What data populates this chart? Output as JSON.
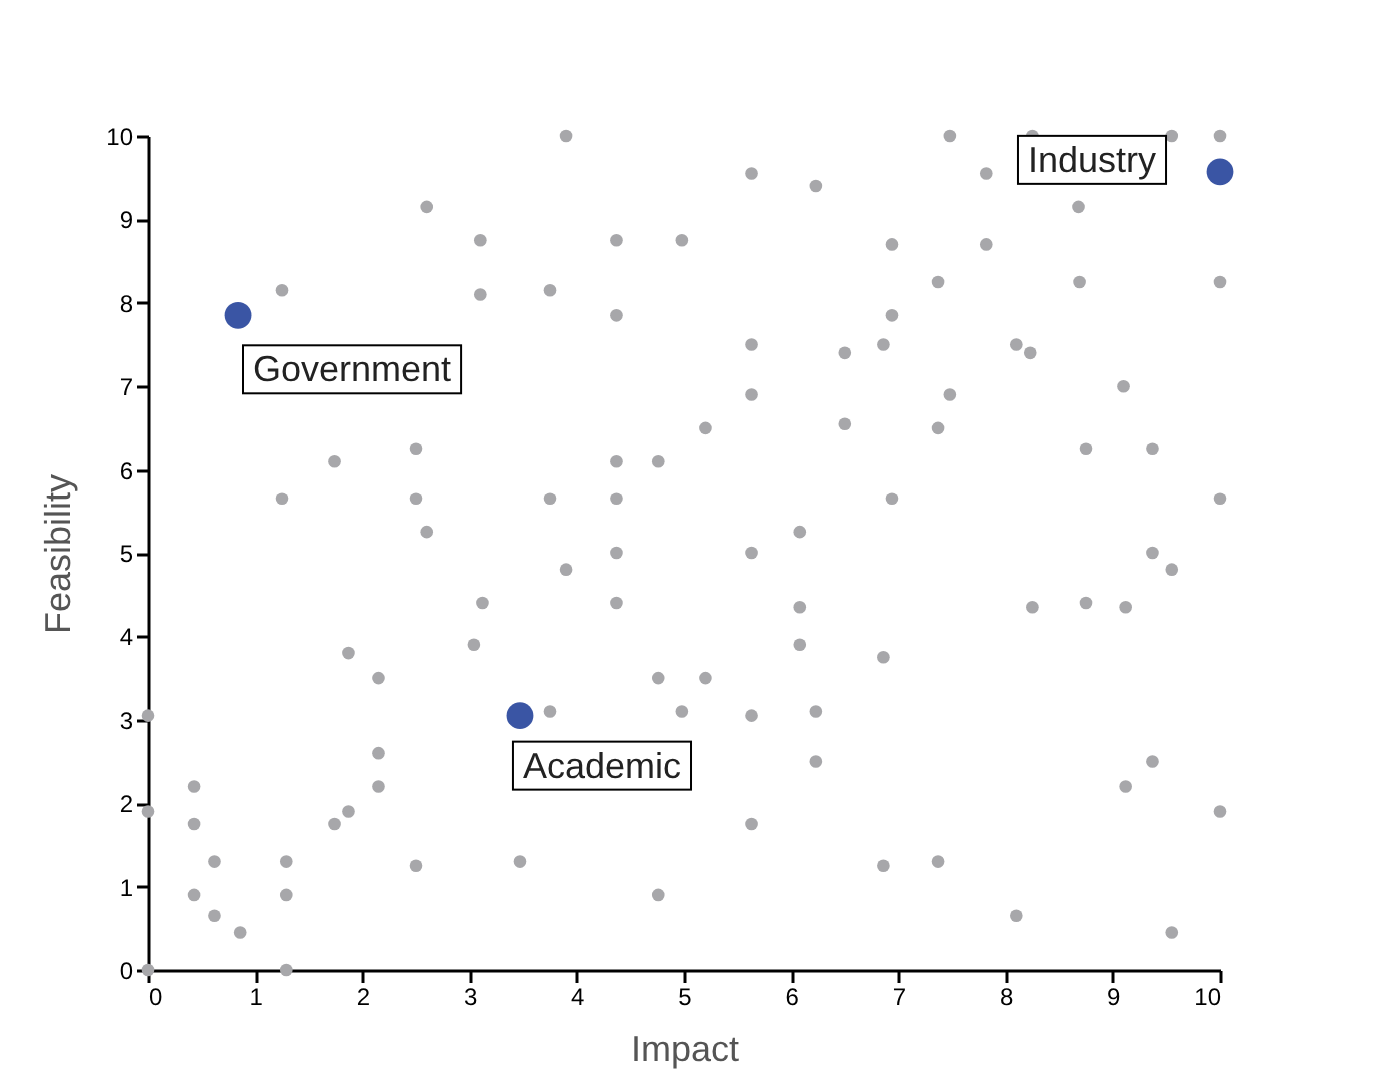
{
  "chart_data": {
    "type": "scatter",
    "xlabel": "Impact",
    "ylabel": "Feasibility",
    "xlim": [
      0,
      10
    ],
    "ylim": [
      0,
      10
    ],
    "xticks": [
      0,
      1,
      2,
      3,
      4,
      5,
      6,
      7,
      8,
      9,
      10
    ],
    "yticks": [
      0,
      1,
      2,
      3,
      4,
      5,
      6,
      7,
      8,
      9,
      10
    ],
    "grid": false,
    "legend": false,
    "marker": "circle",
    "series": [
      {
        "color": "#a7a7aa",
        "x": [
          0,
          0,
          0,
          0.43,
          0.43,
          0.43,
          0.62,
          0.62,
          0.86,
          1.25,
          1.25,
          1.29,
          1.29,
          1.29,
          1.74,
          1.74,
          1.87,
          1.87,
          2.15,
          2.15,
          2.15,
          2.5,
          2.5,
          2.5,
          2.6,
          2.6,
          3.1,
          3.1,
          3.12,
          3.04,
          3.75,
          3.75,
          3.75,
          3.47,
          3.9,
          3.9,
          4.37,
          4.37,
          4.37,
          4.37,
          4.37,
          4.37,
          4.76,
          4.76,
          4.76,
          4.98,
          4.98,
          5.2,
          5.2,
          5.63,
          5.63,
          5.63,
          5.63,
          5.63,
          5.63,
          6.23,
          6.08,
          6.08,
          6.08,
          6.23,
          6.23,
          6.5,
          6.5,
          6.86,
          6.94,
          6.94,
          6.94,
          6.86,
          6.86,
          7.48,
          7.37,
          7.37,
          7.48,
          7.37,
          7.82,
          7.82,
          8.1,
          8.1,
          8.23,
          8.25,
          8.25,
          8.68,
          8.69,
          8.75,
          8.75,
          9.1,
          9.12,
          9.12,
          9.37,
          9.37,
          9.37,
          9.55,
          9.55,
          9.55,
          10,
          10,
          10,
          10
        ],
        "values": [
          0,
          3.05,
          1.9,
          2.2,
          1.75,
          0.9,
          1.3,
          0.65,
          0.45,
          8.15,
          5.65,
          1.3,
          0.9,
          0,
          6.1,
          1.75,
          3.8,
          1.9,
          3.5,
          2.6,
          2.2,
          6.25,
          5.65,
          1.25,
          5.25,
          9.15,
          8.1,
          8.75,
          4.4,
          3.9,
          8.15,
          5.65,
          3.1,
          1.3,
          10,
          4.8,
          8.75,
          7.85,
          6.1,
          5.65,
          5.0,
          4.4,
          6.1,
          3.5,
          0.9,
          8.75,
          3.1,
          3.5,
          6.5,
          9.55,
          7.5,
          6.9,
          5.0,
          3.05,
          1.75,
          9.4,
          5.25,
          4.35,
          3.9,
          3.1,
          2.5,
          7.4,
          6.55,
          7.5,
          7.85,
          8.7,
          5.65,
          3.75,
          1.25,
          10,
          8.25,
          6.5,
          6.9,
          1.3,
          8.7,
          9.55,
          0.65,
          7.5,
          7.4,
          4.35,
          10,
          9.15,
          8.25,
          6.25,
          4.4,
          7.0,
          4.35,
          2.2,
          6.25,
          5.0,
          2.5,
          4.8,
          0.45,
          10,
          10,
          8.25,
          5.65,
          1.9
        ]
      },
      {
        "color": "#3a55a4",
        "x": [
          0.84,
          10,
          3.47
        ],
        "values": [
          7.85,
          9.57,
          3.05
        ]
      }
    ],
    "annotations": [
      {
        "text": "Government",
        "x": 0.84,
        "y": 7.85
      },
      {
        "text": "Industry",
        "x": 10,
        "y": 9.57
      },
      {
        "text": "Academic",
        "x": 3.47,
        "y": 3.05
      }
    ]
  }
}
